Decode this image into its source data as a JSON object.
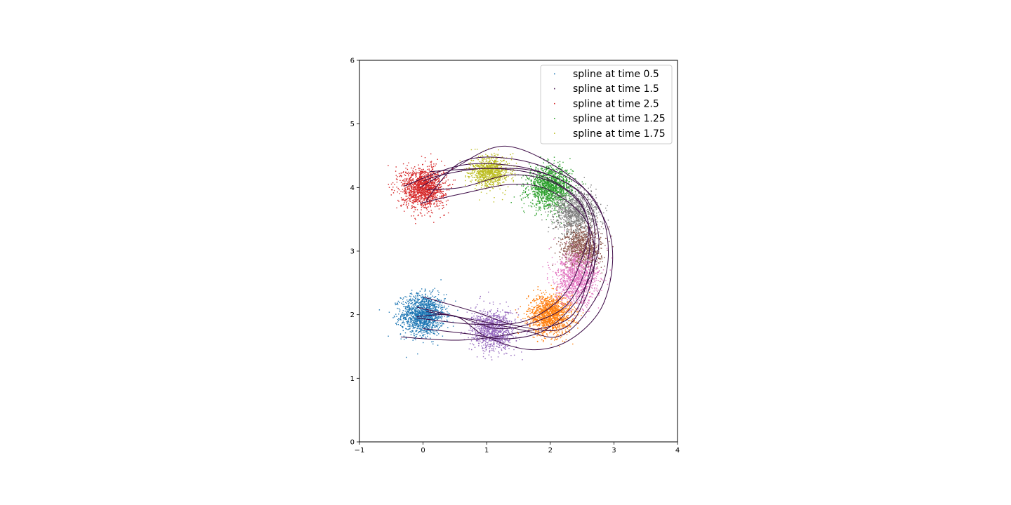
{
  "chart_data": {
    "type": "scatter",
    "title": "",
    "xlabel": "",
    "ylabel": "",
    "xlim": [
      -1,
      4
    ],
    "ylim": [
      0,
      6
    ],
    "xticks": [
      -1,
      0,
      1,
      2,
      3,
      4
    ],
    "yticks": [
      0,
      1,
      2,
      3,
      4,
      5,
      6
    ],
    "xtick_labels": [
      "−1",
      "0",
      "1",
      "2",
      "3",
      "4"
    ],
    "ytick_labels": [
      "0",
      "1",
      "2",
      "3",
      "4",
      "5",
      "6"
    ],
    "grid": false,
    "legend_position": "top-right",
    "legend": [
      {
        "label": "spline at time 0.5",
        "color": "#1f77b4"
      },
      {
        "label": "spline at time 1.5",
        "color": "#3b0a45"
      },
      {
        "label": "spline at time 2.5",
        "color": "#d62728"
      },
      {
        "label": "spline at time 1.25",
        "color": "#2ca02c"
      },
      {
        "label": "spline at time 1.75",
        "color": "#bcbd22"
      }
    ],
    "clusters": [
      {
        "color": "#1f77b4",
        "center": [
          0.0,
          2.0
        ],
        "sd": [
          0.17,
          0.16
        ],
        "n": 1400
      },
      {
        "color": "#ff7f0e",
        "center": [
          2.0,
          2.0
        ],
        "sd": [
          0.17,
          0.16
        ],
        "n": 1400
      },
      {
        "color": "#2ca02c",
        "center": [
          2.0,
          4.0
        ],
        "sd": [
          0.17,
          0.16
        ],
        "n": 1400
      },
      {
        "color": "#d62728",
        "center": [
          0.0,
          4.0
        ],
        "sd": [
          0.17,
          0.16
        ],
        "n": 1400
      },
      {
        "color": "#9467bd",
        "center": [
          1.1,
          1.75
        ],
        "sd": [
          0.17,
          0.16
        ],
        "n": 1000
      },
      {
        "color": "#8c564b",
        "center": [
          2.5,
          3.05
        ],
        "sd": [
          0.15,
          0.17
        ],
        "n": 1000
      },
      {
        "color": "#e377c2",
        "center": [
          2.42,
          2.55
        ],
        "sd": [
          0.17,
          0.2
        ],
        "n": 1100
      },
      {
        "color": "#7f7f7f",
        "center": [
          2.4,
          3.6
        ],
        "sd": [
          0.17,
          0.17
        ],
        "n": 1000
      },
      {
        "color": "#bcbd22",
        "center": [
          1.05,
          4.25
        ],
        "sd": [
          0.15,
          0.12
        ],
        "n": 900
      }
    ],
    "curves": [
      {
        "color": "#3b0a45",
        "points": [
          [
            -0.35,
            1.65
          ],
          [
            0.6,
            1.6
          ],
          [
            1.5,
            1.72
          ],
          [
            2.3,
            1.95
          ],
          [
            2.6,
            2.6
          ],
          [
            2.7,
            3.3
          ],
          [
            2.55,
            3.8
          ],
          [
            2.2,
            4.1
          ],
          [
            1.5,
            4.33
          ],
          [
            0.6,
            4.35
          ],
          [
            -0.3,
            4.02
          ]
        ]
      },
      {
        "color": "#3b0a45",
        "points": [
          [
            -0.1,
            1.95
          ],
          [
            0.8,
            1.85
          ],
          [
            1.6,
            1.9
          ],
          [
            2.2,
            2.3
          ],
          [
            2.5,
            2.9
          ],
          [
            2.6,
            3.4
          ],
          [
            2.4,
            3.85
          ],
          [
            1.8,
            4.2
          ],
          [
            1.0,
            4.3
          ],
          [
            0.3,
            4.2
          ],
          [
            0.0,
            4.1
          ]
        ]
      },
      {
        "color": "#3b0a45",
        "points": [
          [
            -0.1,
            2.12
          ],
          [
            0.6,
            1.95
          ],
          [
            1.2,
            1.78
          ],
          [
            1.8,
            1.9
          ],
          [
            2.3,
            2.2
          ],
          [
            2.6,
            2.9
          ],
          [
            2.55,
            3.6
          ],
          [
            2.1,
            4.05
          ],
          [
            1.4,
            4.2
          ],
          [
            0.6,
            4.0
          ],
          [
            0.05,
            3.97
          ]
        ]
      },
      {
        "color": "#3b0a45",
        "points": [
          [
            0.0,
            2.28
          ],
          [
            0.8,
            2.05
          ],
          [
            1.5,
            1.82
          ],
          [
            2.2,
            1.78
          ],
          [
            2.55,
            2.25
          ],
          [
            2.7,
            2.9
          ],
          [
            2.55,
            3.5
          ],
          [
            2.0,
            3.95
          ],
          [
            1.4,
            4.05
          ],
          [
            0.6,
            3.9
          ],
          [
            -0.05,
            3.75
          ]
        ]
      },
      {
        "color": "#3b0a45",
        "points": [
          [
            0.0,
            1.78
          ],
          [
            0.7,
            1.7
          ],
          [
            1.3,
            1.62
          ],
          [
            1.9,
            1.75
          ],
          [
            2.4,
            2.2
          ],
          [
            2.7,
            2.8
          ],
          [
            2.75,
            3.3
          ],
          [
            2.5,
            3.9
          ],
          [
            1.8,
            4.25
          ],
          [
            1.0,
            4.3
          ],
          [
            0.1,
            4.25
          ]
        ]
      },
      {
        "color": "#3b0a45",
        "points": [
          [
            -0.1,
            1.97
          ],
          [
            0.5,
            1.98
          ],
          [
            1.0,
            1.65
          ],
          [
            1.7,
            1.45
          ],
          [
            2.3,
            1.6
          ],
          [
            2.8,
            2.1
          ],
          [
            2.98,
            2.85
          ],
          [
            2.85,
            3.5
          ],
          [
            2.35,
            4.15
          ],
          [
            1.3,
            4.65
          ],
          [
            0.4,
            4.25
          ],
          [
            -0.05,
            4.0
          ]
        ]
      },
      {
        "color": "#3b0a45",
        "points": [
          [
            0.05,
            2.05
          ],
          [
            0.9,
            1.9
          ],
          [
            1.6,
            1.75
          ],
          [
            2.1,
            1.65
          ],
          [
            2.5,
            1.95
          ],
          [
            2.85,
            2.55
          ],
          [
            2.9,
            3.2
          ],
          [
            2.7,
            3.8
          ],
          [
            2.2,
            4.2
          ],
          [
            1.4,
            4.45
          ],
          [
            0.6,
            4.4
          ],
          [
            0.05,
            3.8
          ]
        ]
      }
    ]
  }
}
